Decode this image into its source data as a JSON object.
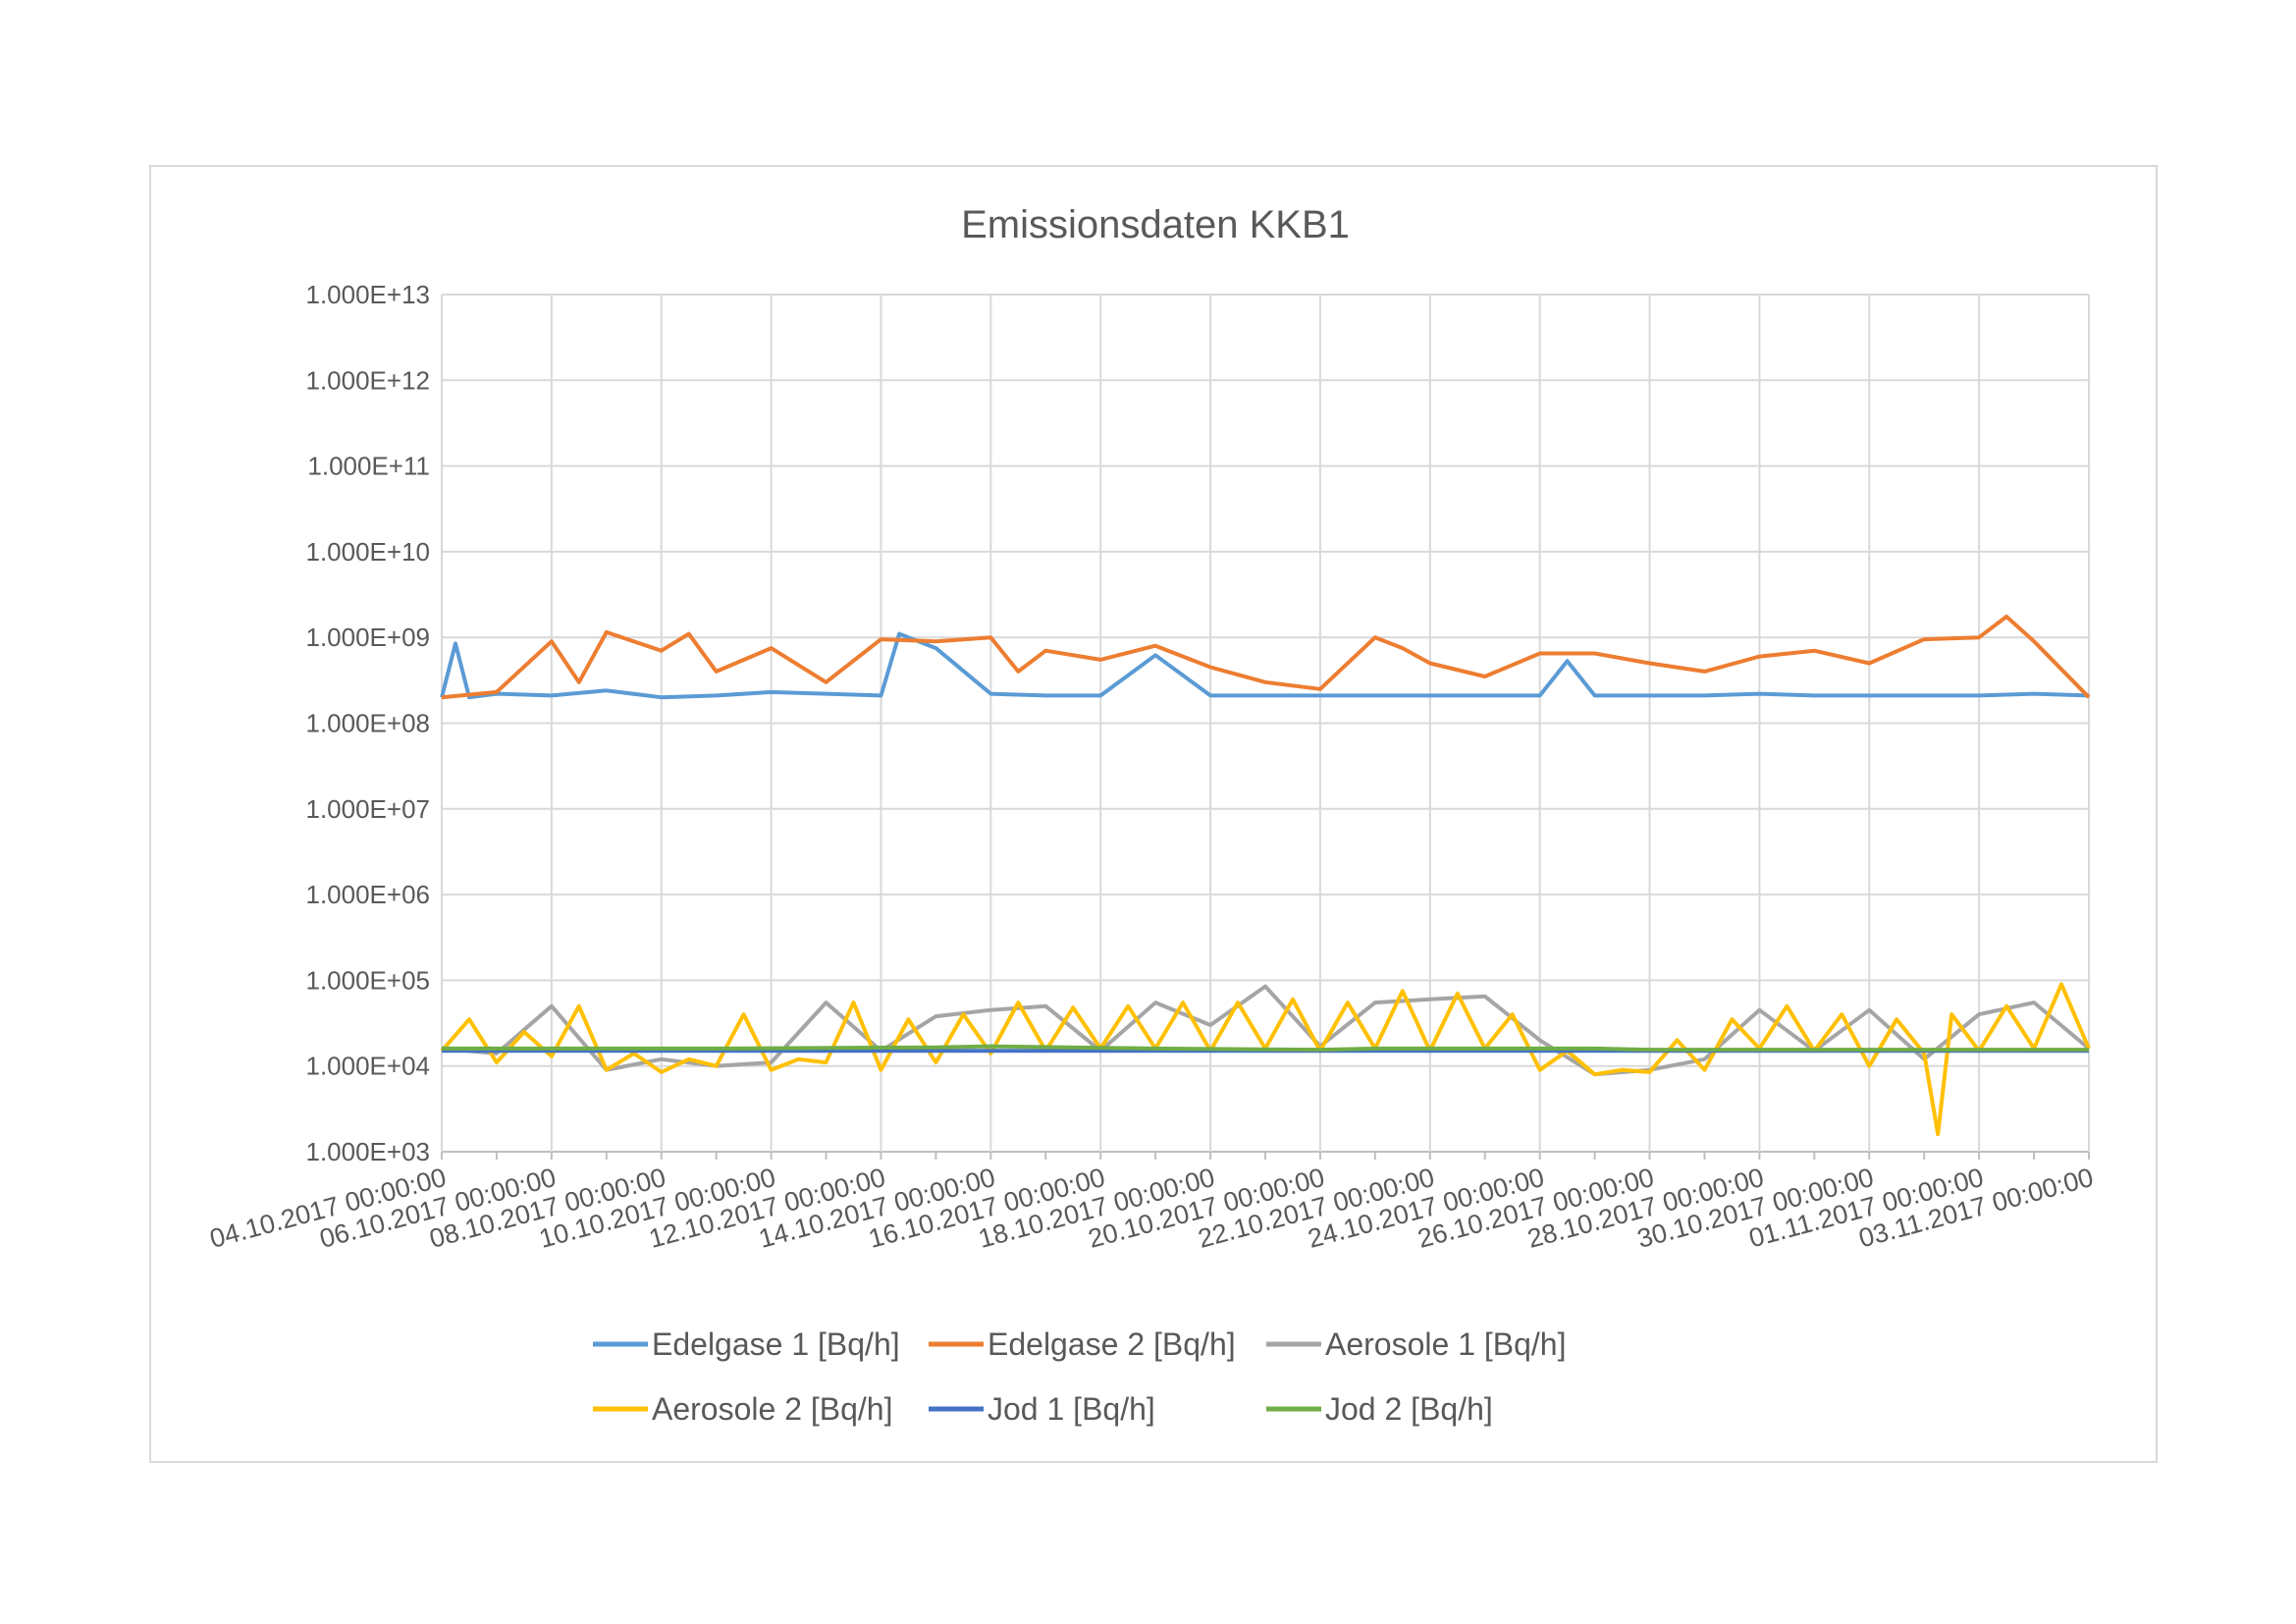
{
  "chart_data": {
    "type": "line",
    "title": "Emissionsdaten KKB1",
    "xlabel": "",
    "ylabel": "",
    "y_scale": "log",
    "ylim": [
      1000,
      10000000000000
    ],
    "y_ticks": [
      "1.000E+03",
      "1.000E+04",
      "1.000E+05",
      "1.000E+06",
      "1.000E+07",
      "1.000E+08",
      "1.000E+09",
      "1.000E+10",
      "1.000E+11",
      "1.000E+12",
      "1.000E+13"
    ],
    "xlim": [
      "04.10.2017 00:00:00",
      "03.11.2017 00:00:00"
    ],
    "x_ticks": [
      "04.10.2017 00:00:00",
      "06.10.2017 00:00:00",
      "08.10.2017 00:00:00",
      "10.10.2017 00:00:00",
      "12.10.2017 00:00:00",
      "14.10.2017 00:00:00",
      "16.10.2017 00:00:00",
      "18.10.2017 00:00:00",
      "20.10.2017 00:00:00",
      "22.10.2017 00:00:00",
      "24.10.2017 00:00:00",
      "26.10.2017 00:00:00",
      "28.10.2017 00:00:00",
      "30.10.2017 00:00:00",
      "01.11.2017 00:00:00",
      "03.11.2017 00:00:00"
    ],
    "grid": true,
    "legend_position": "bottom",
    "series": [
      {
        "name": "Edelgase 1 [Bq/h]",
        "color": "#5b9bd5",
        "x": [
          "04.10.2017",
          "04.10.2017 06:00",
          "04.10.2017 12:00",
          "05.10.2017",
          "06.10.2017",
          "07.10.2017",
          "08.10.2017",
          "09.10.2017",
          "10.10.2017",
          "11.10.2017",
          "12.10.2017",
          "12.10.2017 08:00",
          "13.10.2017",
          "14.10.2017",
          "15.10.2017",
          "16.10.2017",
          "17.10.2017",
          "18.10.2017",
          "19.10.2017",
          "20.10.2017",
          "21.10.2017",
          "22.10.2017",
          "23.10.2017",
          "24.10.2017",
          "24.10.2017 12:00",
          "25.10.2017",
          "26.10.2017",
          "27.10.2017",
          "28.10.2017",
          "29.10.2017",
          "30.10.2017",
          "31.10.2017",
          "01.11.2017",
          "02.11.2017",
          "03.11.2017"
        ],
        "y": [
          200000000,
          850000000,
          200000000,
          220000000,
          210000000,
          240000000,
          200000000,
          210000000,
          230000000,
          220000000,
          210000000,
          1100000000,
          750000000,
          220000000,
          210000000,
          210000000,
          620000000,
          210000000,
          210000000,
          210000000,
          210000000,
          210000000,
          210000000,
          210000000,
          530000000,
          210000000,
          210000000,
          210000000,
          220000000,
          210000000,
          210000000,
          210000000,
          210000000,
          220000000,
          210000000
        ]
      },
      {
        "name": "Edelgase 2 [Bq/h]",
        "color": "#ed7d31",
        "x": [
          "04.10.2017",
          "05.10.2017",
          "06.10.2017",
          "06.10.2017 12:00",
          "07.10.2017",
          "08.10.2017",
          "08.10.2017 12:00",
          "09.10.2017",
          "10.10.2017",
          "11.10.2017",
          "12.10.2017",
          "13.10.2017",
          "14.10.2017",
          "14.10.2017 12:00",
          "15.10.2017",
          "16.10.2017",
          "17.10.2017",
          "18.10.2017",
          "19.10.2017",
          "20.10.2017",
          "21.10.2017",
          "21.10.2017 12:00",
          "22.10.2017",
          "23.10.2017",
          "24.10.2017",
          "25.10.2017",
          "26.10.2017",
          "27.10.2017",
          "28.10.2017",
          "29.10.2017",
          "30.10.2017",
          "31.10.2017",
          "01.11.2017",
          "01.11.2017 12:00",
          "02.11.2017",
          "03.11.2017"
        ],
        "y": [
          200000000,
          230000000,
          900000000,
          300000000,
          1150000000,
          700000000,
          1100000000,
          400000000,
          750000000,
          300000000,
          950000000,
          900000000,
          1000000000,
          400000000,
          700000000,
          550000000,
          800000000,
          450000000,
          300000000,
          250000000,
          1000000000,
          750000000,
          500000000,
          350000000,
          650000000,
          650000000,
          500000000,
          400000000,
          600000000,
          700000000,
          500000000,
          950000000,
          1000000000,
          1750000000,
          900000000,
          200000000
        ]
      },
      {
        "name": "Aerosole 1 [Bq/h]",
        "color": "#a5a5a5",
        "x": [
          "04.10.2017",
          "05.10.2017",
          "06.10.2017",
          "07.10.2017",
          "08.10.2017",
          "09.10.2017",
          "10.10.2017",
          "11.10.2017",
          "12.10.2017",
          "13.10.2017",
          "14.10.2017",
          "15.10.2017",
          "16.10.2017",
          "17.10.2017",
          "18.10.2017",
          "19.10.2017",
          "20.10.2017",
          "21.10.2017",
          "22.10.2017",
          "23.10.2017",
          "24.10.2017",
          "25.10.2017",
          "26.10.2017",
          "27.10.2017",
          "28.10.2017",
          "29.10.2017",
          "30.10.2017",
          "31.10.2017",
          "01.11.2017",
          "02.11.2017",
          "03.11.2017"
        ],
        "y": [
          16000,
          14000,
          50000,
          9000,
          12000,
          10000,
          11000,
          55000,
          15000,
          38000,
          45000,
          50000,
          15000,
          55000,
          30000,
          85000,
          17000,
          55000,
          60000,
          65000,
          20000,
          8000,
          9000,
          12000,
          45000,
          15000,
          45000,
          12000,
          40000,
          55000,
          16000
        ]
      },
      {
        "name": "Aerosole 2 [Bq/h]",
        "color": "#ffc000",
        "x": [
          "04.10.2017",
          "04.10.2017 12:00",
          "05.10.2017",
          "05.10.2017 12:00",
          "06.10.2017",
          "06.10.2017 12:00",
          "07.10.2017",
          "07.10.2017 12:00",
          "08.10.2017",
          "08.10.2017 12:00",
          "09.10.2017",
          "09.10.2017 12:00",
          "10.10.2017",
          "10.10.2017 12:00",
          "11.10.2017",
          "11.10.2017 12:00",
          "12.10.2017",
          "12.10.2017 12:00",
          "13.10.2017",
          "13.10.2017 12:00",
          "14.10.2017",
          "14.10.2017 12:00",
          "15.10.2017",
          "15.10.2017 12:00",
          "16.10.2017",
          "16.10.2017 12:00",
          "17.10.2017",
          "17.10.2017 12:00",
          "18.10.2017",
          "18.10.2017 12:00",
          "19.10.2017",
          "19.10.2017 12:00",
          "20.10.2017",
          "20.10.2017 12:00",
          "21.10.2017",
          "21.10.2017 12:00",
          "22.10.2017",
          "22.10.2017 12:00",
          "23.10.2017",
          "23.10.2017 12:00",
          "24.10.2017",
          "24.10.2017 12:00",
          "25.10.2017",
          "25.10.2017 12:00",
          "26.10.2017",
          "26.10.2017 12:00",
          "27.10.2017",
          "27.10.2017 12:00",
          "28.10.2017",
          "28.10.2017 12:00",
          "29.10.2017",
          "29.10.2017 12:00",
          "30.10.2017",
          "30.10.2017 12:00",
          "31.10.2017",
          "31.10.2017 06:00",
          "31.10.2017 12:00",
          "01.11.2017",
          "01.11.2017 12:00",
          "02.11.2017",
          "02.11.2017 12:00",
          "03.11.2017"
        ],
        "y": [
          15000,
          35000,
          11000,
          25000,
          13000,
          50000,
          9000,
          14000,
          8500,
          12000,
          10000,
          40000,
          9000,
          12000,
          11000,
          55000,
          9000,
          35000,
          11000,
          40000,
          14000,
          55000,
          15000,
          48000,
          16000,
          50000,
          16000,
          55000,
          15000,
          55000,
          16000,
          60000,
          15000,
          55000,
          16000,
          75000,
          15000,
          70000,
          16000,
          40000,
          9000,
          15000,
          8000,
          9000,
          8500,
          20000,
          9000,
          35000,
          16000,
          50000,
          15000,
          40000,
          10000,
          35000,
          14000,
          1600,
          40000,
          15000,
          50000,
          16000,
          90000,
          16000
        ]
      },
      {
        "name": "Jod 1 [Bq/h]",
        "color": "#4472c4",
        "x": [
          "04.10.2017",
          "03.11.2017"
        ],
        "y": [
          15000,
          15000
        ]
      },
      {
        "name": "Jod 2 [Bq/h]",
        "color": "#70ad47",
        "x": [
          "04.10.2017",
          "09.10.2017",
          "13.10.2017",
          "14.10.2017",
          "17.10.2017",
          "20.10.2017",
          "21.10.2017",
          "25.10.2017",
          "26.10.2017",
          "30.10.2017",
          "03.11.2017"
        ],
        "y": [
          16000,
          16000,
          16500,
          17000,
          16000,
          15500,
          16000,
          16000,
          15500,
          15500,
          15500
        ]
      }
    ]
  }
}
